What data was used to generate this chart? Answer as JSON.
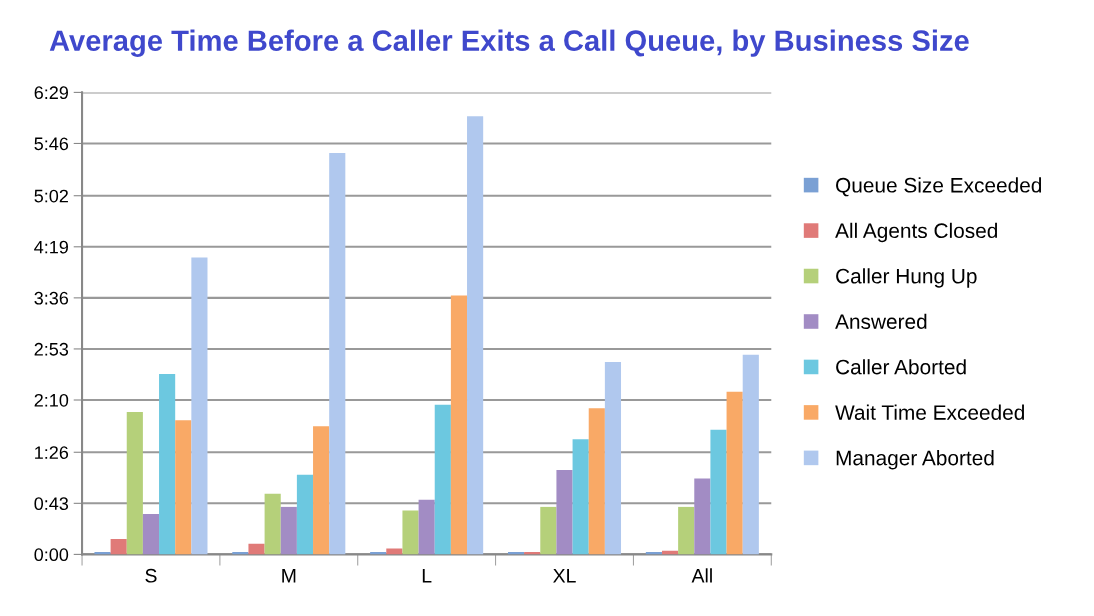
{
  "chart_data": {
    "type": "bar",
    "title": "Average Time Before a Caller Exits a Call Queue, by Business Size",
    "categories": [
      "S",
      "M",
      "L",
      "XL",
      "All"
    ],
    "series": [
      {
        "name": "Queue Size Exceeded",
        "color": "#7aa0d4",
        "values": [
          2,
          2,
          2,
          2,
          2
        ]
      },
      {
        "name": "All Agents Closed",
        "color": "#e07a78",
        "values": [
          13,
          9,
          5,
          2,
          3
        ]
      },
      {
        "name": "Caller Hung Up",
        "color": "#b5d07a",
        "values": [
          120,
          51,
          37,
          40,
          40
        ]
      },
      {
        "name": "Answered",
        "color": "#a28cc4",
        "values": [
          34,
          40,
          46,
          71,
          64
        ]
      },
      {
        "name": "Caller Aborted",
        "color": "#6cc8e0",
        "values": [
          152,
          67,
          126,
          97,
          105
        ]
      },
      {
        "name": "Wait Time Exceeded",
        "color": "#f9a966",
        "values": [
          113,
          108,
          218,
          123,
          137
        ]
      },
      {
        "name": "Manager Aborted",
        "color": "#b0c8ee",
        "values": [
          250,
          338,
          369,
          162,
          168
        ]
      }
    ],
    "ylim": [
      0,
      389
    ],
    "yticks": [
      {
        "value": 0,
        "label": "0:00"
      },
      {
        "value": 43,
        "label": "0:43"
      },
      {
        "value": 86,
        "label": "1:26"
      },
      {
        "value": 130,
        "label": "2:10"
      },
      {
        "value": 173,
        "label": "2:53"
      },
      {
        "value": 216,
        "label": "3:36"
      },
      {
        "value": 259,
        "label": "4:19"
      },
      {
        "value": 302,
        "label": "5:02"
      },
      {
        "value": 346,
        "label": "5:46"
      },
      {
        "value": 389,
        "label": "6:29"
      }
    ],
    "grid": "y",
    "legend": "right"
  }
}
